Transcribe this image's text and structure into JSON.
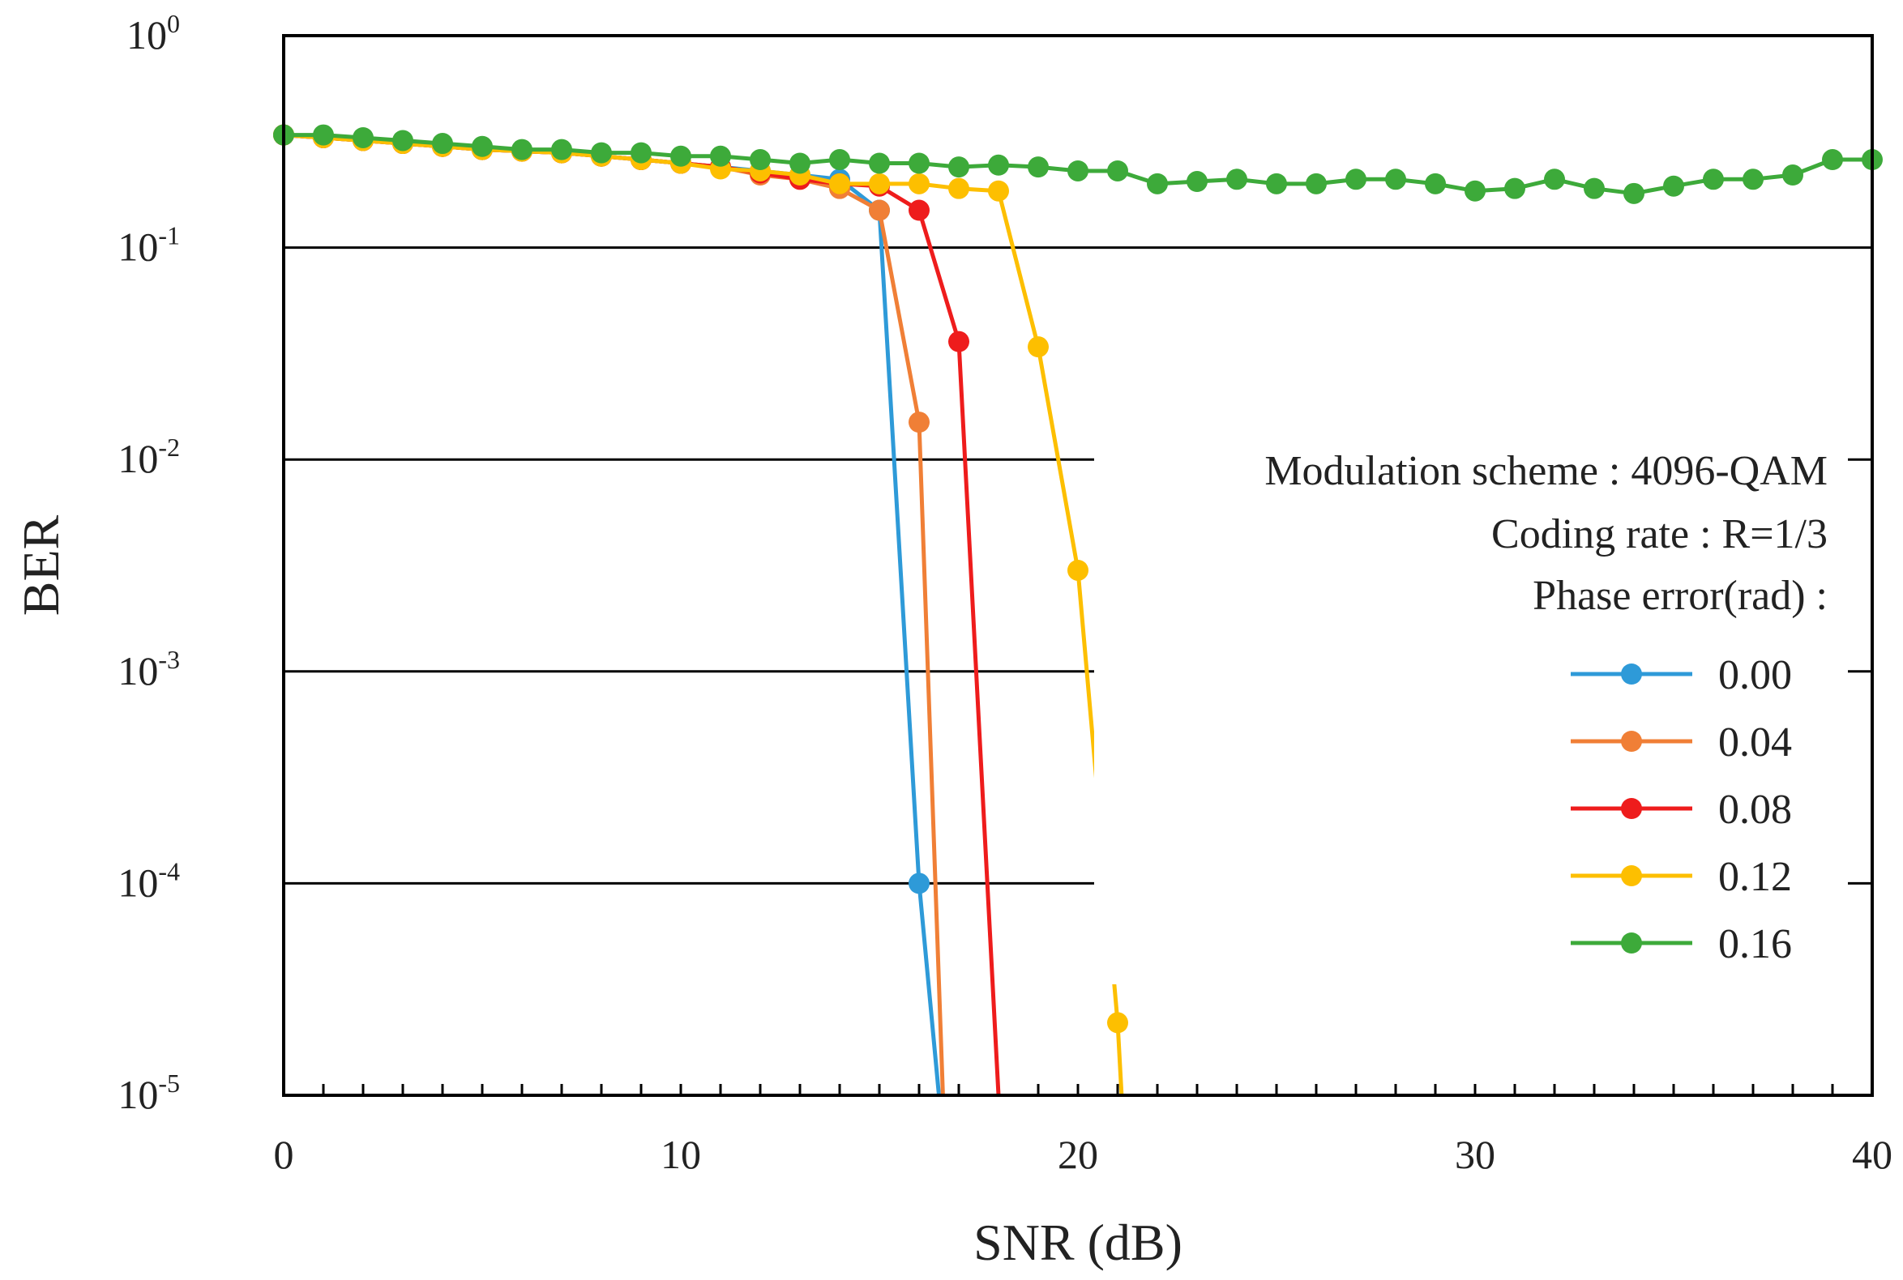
{
  "chart_data": {
    "type": "line",
    "xlabel": "SNR (dB)",
    "ylabel": "BER",
    "x_scale": "linear",
    "y_scale": "log",
    "xlim": [
      0,
      40
    ],
    "ylim": [
      1e-05,
      1
    ],
    "x_ticks": [
      0,
      10,
      20,
      30,
      40
    ],
    "y_ticks": [
      {
        "value": 1,
        "base": "10",
        "exp": "0"
      },
      {
        "value": 0.1,
        "base": "10",
        "exp": "-1"
      },
      {
        "value": 0.01,
        "base": "10",
        "exp": "-2"
      },
      {
        "value": 0.001,
        "base": "10",
        "exp": "-3"
      },
      {
        "value": 0.0001,
        "base": "10",
        "exp": "-4"
      },
      {
        "value": 1e-05,
        "base": "10",
        "exp": "-5"
      }
    ],
    "grid": "horizontal",
    "legend_position": "right",
    "annotations": [
      "Modulation scheme : 4096-QAM",
      "Coding rate : R=1/3",
      "Phase error(rad) :"
    ],
    "series": [
      {
        "name": "0.00",
        "color": "#2e9ad8",
        "points": [
          [
            0,
            0.34
          ],
          [
            1,
            0.33
          ],
          [
            2,
            0.32
          ],
          [
            3,
            0.31
          ],
          [
            4,
            0.3
          ],
          [
            5,
            0.29
          ],
          [
            6,
            0.285
          ],
          [
            7,
            0.28
          ],
          [
            8,
            0.27
          ],
          [
            9,
            0.26
          ],
          [
            10,
            0.25
          ],
          [
            11,
            0.24
          ],
          [
            12,
            0.23
          ],
          [
            13,
            0.22
          ],
          [
            14,
            0.21
          ],
          [
            15,
            0.15
          ],
          [
            16,
            0.0001
          ],
          [
            16.5,
            1e-05
          ]
        ]
      },
      {
        "name": "0.04",
        "color": "#f07f36",
        "points": [
          [
            0,
            0.34
          ],
          [
            1,
            0.33
          ],
          [
            2,
            0.32
          ],
          [
            3,
            0.31
          ],
          [
            4,
            0.3
          ],
          [
            5,
            0.29
          ],
          [
            6,
            0.285
          ],
          [
            7,
            0.28
          ],
          [
            8,
            0.27
          ],
          [
            9,
            0.26
          ],
          [
            10,
            0.25
          ],
          [
            11,
            0.24
          ],
          [
            12,
            0.22
          ],
          [
            13,
            0.21
          ],
          [
            14,
            0.19
          ],
          [
            15,
            0.15
          ],
          [
            16,
            0.015
          ],
          [
            16.6,
            1e-05
          ]
        ]
      },
      {
        "name": "0.08",
        "color": "#ee1c1c",
        "points": [
          [
            0,
            0.34
          ],
          [
            1,
            0.33
          ],
          [
            2,
            0.32
          ],
          [
            3,
            0.31
          ],
          [
            4,
            0.3
          ],
          [
            5,
            0.29
          ],
          [
            6,
            0.285
          ],
          [
            7,
            0.28
          ],
          [
            8,
            0.27
          ],
          [
            9,
            0.26
          ],
          [
            10,
            0.25
          ],
          [
            11,
            0.24
          ],
          [
            12,
            0.225
          ],
          [
            13,
            0.21
          ],
          [
            14,
            0.2
          ],
          [
            15,
            0.195
          ],
          [
            16,
            0.15
          ],
          [
            17,
            0.036
          ],
          [
            18,
            1e-05
          ]
        ]
      },
      {
        "name": "0.12",
        "color": "#fdbf00",
        "points": [
          [
            0,
            0.34
          ],
          [
            1,
            0.33
          ],
          [
            2,
            0.32
          ],
          [
            3,
            0.31
          ],
          [
            4,
            0.3
          ],
          [
            5,
            0.29
          ],
          [
            6,
            0.285
          ],
          [
            7,
            0.28
          ],
          [
            8,
            0.27
          ],
          [
            9,
            0.26
          ],
          [
            10,
            0.25
          ],
          [
            11,
            0.235
          ],
          [
            12,
            0.23
          ],
          [
            13,
            0.22
          ],
          [
            14,
            0.2
          ],
          [
            15,
            0.2
          ],
          [
            16,
            0.2
          ],
          [
            17,
            0.19
          ],
          [
            18,
            0.185
          ],
          [
            19,
            0.034
          ],
          [
            20,
            0.003
          ],
          [
            21,
            2.2e-05
          ],
          [
            21.1,
            1e-05
          ]
        ]
      },
      {
        "name": "0.16",
        "color": "#3daa3a",
        "points": [
          [
            0,
            0.34
          ],
          [
            1,
            0.34
          ],
          [
            2,
            0.33
          ],
          [
            3,
            0.32
          ],
          [
            4,
            0.31
          ],
          [
            5,
            0.3
          ],
          [
            6,
            0.29
          ],
          [
            7,
            0.29
          ],
          [
            8,
            0.28
          ],
          [
            9,
            0.28
          ],
          [
            10,
            0.27
          ],
          [
            11,
            0.27
          ],
          [
            12,
            0.26
          ],
          [
            13,
            0.25
          ],
          [
            14,
            0.26
          ],
          [
            15,
            0.25
          ],
          [
            16,
            0.25
          ],
          [
            17,
            0.24
          ],
          [
            18,
            0.245
          ],
          [
            19,
            0.24
          ],
          [
            20,
            0.23
          ],
          [
            21,
            0.23
          ],
          [
            22,
            0.2
          ],
          [
            23,
            0.205
          ],
          [
            24,
            0.21
          ],
          [
            25,
            0.2
          ],
          [
            26,
            0.2
          ],
          [
            27,
            0.21
          ],
          [
            28,
            0.21
          ],
          [
            29,
            0.2
          ],
          [
            30,
            0.185
          ],
          [
            31,
            0.19
          ],
          [
            32,
            0.21
          ],
          [
            33,
            0.19
          ],
          [
            34,
            0.18
          ],
          [
            35,
            0.195
          ],
          [
            36,
            0.21
          ],
          [
            37,
            0.21
          ],
          [
            38,
            0.22
          ],
          [
            39,
            0.26
          ],
          [
            40,
            0.26
          ]
        ]
      }
    ]
  }
}
